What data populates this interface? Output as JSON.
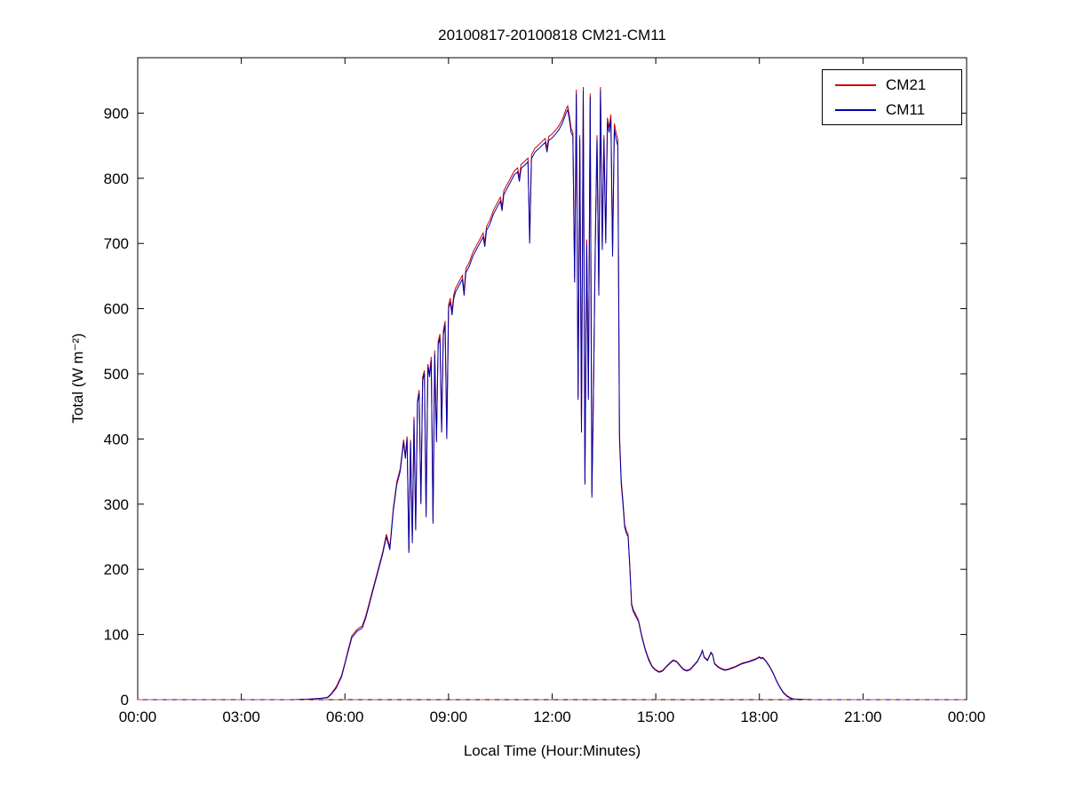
{
  "chart_data": {
    "type": "line",
    "title": "20100817-20100818 CM21-CM11",
    "xlabel": "Local Time (Hour:Minutes)",
    "ylabel": "Total (W m⁻²)",
    "xlim": [
      0,
      24
    ],
    "ylim": [
      0,
      985
    ],
    "grid": false,
    "xticks": [
      0,
      3,
      6,
      9,
      12,
      15,
      18,
      21,
      24
    ],
    "xtick_labels": [
      "00:00",
      "03:00",
      "06:00",
      "09:00",
      "12:00",
      "15:00",
      "18:00",
      "21:00",
      "00:00"
    ],
    "yticks": [
      0,
      100,
      200,
      300,
      400,
      500,
      600,
      700,
      800,
      900
    ],
    "legend": {
      "position": "top-right",
      "entries": [
        {
          "label": "CM21",
          "color": "#cc0000"
        },
        {
          "label": "CM11",
          "color": "#0000aa"
        }
      ]
    },
    "zero_line": {
      "y": 0,
      "style": "dashed",
      "color": "#dd4444"
    },
    "series": [
      {
        "name": "CM21",
        "color": "#cc0000",
        "col": 1
      },
      {
        "name": "CM11",
        "color": "#0000aa",
        "col": 2
      }
    ],
    "points": [
      [
        0,
        0,
        0
      ],
      [
        0.5,
        0,
        0
      ],
      [
        1,
        0,
        0
      ],
      [
        1.5,
        0,
        0
      ],
      [
        2,
        0,
        0
      ],
      [
        2.5,
        0,
        0
      ],
      [
        3,
        0,
        0
      ],
      [
        3.5,
        0,
        0
      ],
      [
        4,
        0,
        0
      ],
      [
        4.5,
        0,
        0
      ],
      [
        5,
        1,
        1
      ],
      [
        5.3,
        2,
        2
      ],
      [
        5.5,
        4,
        3
      ],
      [
        5.6,
        9,
        8
      ],
      [
        5.75,
        20,
        18
      ],
      [
        5.9,
        37,
        35
      ],
      [
        6.0,
        57,
        55
      ],
      [
        6.1,
        78,
        75
      ],
      [
        6.2,
        98,
        95
      ],
      [
        6.35,
        108,
        105
      ],
      [
        6.5,
        113,
        110
      ],
      [
        6.6,
        128,
        125
      ],
      [
        6.7,
        148,
        145
      ],
      [
        6.8,
        168,
        165
      ],
      [
        6.95,
        198,
        195
      ],
      [
        7.1,
        228,
        225
      ],
      [
        7.2,
        254,
        250
      ],
      [
        7.3,
        234,
        230
      ],
      [
        7.4,
        294,
        290
      ],
      [
        7.5,
        334,
        330
      ],
      [
        7.6,
        354,
        350
      ],
      [
        7.7,
        399,
        395
      ],
      [
        7.75,
        374,
        370
      ],
      [
        7.8,
        404,
        400
      ],
      [
        7.85,
        229,
        225
      ],
      [
        7.9,
        399,
        395
      ],
      [
        7.95,
        244,
        240
      ],
      [
        8.0,
        434,
        430
      ],
      [
        8.05,
        264,
        260
      ],
      [
        8.1,
        459,
        455
      ],
      [
        8.15,
        475,
        470
      ],
      [
        8.2,
        304,
        300
      ],
      [
        8.25,
        495,
        490
      ],
      [
        8.3,
        505,
        500
      ],
      [
        8.35,
        284,
        280
      ],
      [
        8.4,
        515,
        510
      ],
      [
        8.45,
        500,
        495
      ],
      [
        8.5,
        526,
        520
      ],
      [
        8.55,
        274,
        270
      ],
      [
        8.6,
        536,
        530
      ],
      [
        8.65,
        399,
        395
      ],
      [
        8.7,
        550,
        545
      ],
      [
        8.75,
        561,
        555
      ],
      [
        8.8,
        415,
        410
      ],
      [
        8.85,
        566,
        560
      ],
      [
        8.9,
        581,
        575
      ],
      [
        8.95,
        405,
        400
      ],
      [
        9.0,
        606,
        600
      ],
      [
        9.05,
        616,
        610
      ],
      [
        9.1,
        596,
        590
      ],
      [
        9.15,
        621,
        615
      ],
      [
        9.2,
        631,
        625
      ],
      [
        9.3,
        641,
        635
      ],
      [
        9.4,
        651,
        645
      ],
      [
        9.45,
        626,
        620
      ],
      [
        9.5,
        661,
        655
      ],
      [
        9.6,
        671,
        665
      ],
      [
        9.7,
        686,
        680
      ],
      [
        9.8,
        696,
        690
      ],
      [
        9.9,
        706,
        700
      ],
      [
        10.0,
        716,
        710
      ],
      [
        10.05,
        701,
        695
      ],
      [
        10.1,
        726,
        720
      ],
      [
        10.2,
        736,
        730
      ],
      [
        10.3,
        751,
        745
      ],
      [
        10.4,
        761,
        755
      ],
      [
        10.5,
        771,
        765
      ],
      [
        10.55,
        756,
        750
      ],
      [
        10.6,
        781,
        775
      ],
      [
        10.7,
        791,
        785
      ],
      [
        10.8,
        801,
        795
      ],
      [
        10.9,
        811,
        805
      ],
      [
        11.0,
        816,
        810
      ],
      [
        11.05,
        801,
        795
      ],
      [
        11.1,
        821,
        815
      ],
      [
        11.2,
        826,
        820
      ],
      [
        11.3,
        831,
        825
      ],
      [
        11.35,
        706,
        700
      ],
      [
        11.4,
        836,
        830
      ],
      [
        11.5,
        846,
        840
      ],
      [
        11.6,
        851,
        845
      ],
      [
        11.7,
        856,
        850
      ],
      [
        11.8,
        861,
        855
      ],
      [
        11.85,
        846,
        840
      ],
      [
        11.9,
        864,
        858
      ],
      [
        12.0,
        868,
        862
      ],
      [
        12.1,
        874,
        868
      ],
      [
        12.2,
        881,
        875
      ],
      [
        12.3,
        891,
        885
      ],
      [
        12.4,
        906,
        900
      ],
      [
        12.45,
        911,
        905
      ],
      [
        12.5,
        896,
        890
      ],
      [
        12.55,
        876,
        870
      ],
      [
        12.6,
        871,
        865
      ],
      [
        12.65,
        646,
        640
      ],
      [
        12.7,
        936,
        930
      ],
      [
        12.75,
        465,
        460
      ],
      [
        12.8,
        866,
        860
      ],
      [
        12.85,
        415,
        410
      ],
      [
        12.9,
        940,
        935
      ],
      [
        12.95,
        335,
        330
      ],
      [
        13.0,
        706,
        700
      ],
      [
        13.05,
        465,
        460
      ],
      [
        13.1,
        930,
        925
      ],
      [
        13.15,
        315,
        310
      ],
      [
        13.2,
        485,
        480
      ],
      [
        13.25,
        706,
        700
      ],
      [
        13.3,
        866,
        860
      ],
      [
        13.35,
        626,
        620
      ],
      [
        13.4,
        940,
        935
      ],
      [
        13.45,
        696,
        690
      ],
      [
        13.5,
        866,
        860
      ],
      [
        13.55,
        706,
        700
      ],
      [
        13.6,
        893,
        885
      ],
      [
        13.65,
        878,
        870
      ],
      [
        13.7,
        898,
        890
      ],
      [
        13.75,
        688,
        680
      ],
      [
        13.8,
        884,
        875
      ],
      [
        13.85,
        870,
        860
      ],
      [
        13.9,
        860,
        850
      ],
      [
        13.95,
        408,
        400
      ],
      [
        14.0,
        336,
        330
      ],
      [
        14.05,
        305,
        300
      ],
      [
        14.1,
        269,
        265
      ],
      [
        14.15,
        259,
        255
      ],
      [
        14.2,
        254,
        250
      ],
      [
        14.25,
        203,
        200
      ],
      [
        14.3,
        148,
        145
      ],
      [
        14.35,
        138,
        135
      ],
      [
        14.4,
        133,
        130
      ],
      [
        14.5,
        122,
        120
      ],
      [
        14.6,
        97,
        95
      ],
      [
        14.7,
        77,
        75
      ],
      [
        14.8,
        62,
        60
      ],
      [
        14.9,
        51,
        50
      ],
      [
        15.0,
        46,
        45
      ],
      [
        15.1,
        43,
        42
      ],
      [
        15.2,
        45,
        44
      ],
      [
        15.3,
        51,
        50
      ],
      [
        15.4,
        56,
        55
      ],
      [
        15.5,
        61,
        60
      ],
      [
        15.6,
        59,
        58
      ],
      [
        15.7,
        53,
        52
      ],
      [
        15.8,
        47,
        46
      ],
      [
        15.9,
        45,
        44
      ],
      [
        16.0,
        47,
        46
      ],
      [
        16.1,
        53,
        52
      ],
      [
        16.2,
        59,
        58
      ],
      [
        16.3,
        69,
        68
      ],
      [
        16.35,
        76,
        75
      ],
      [
        16.4,
        66,
        65
      ],
      [
        16.5,
        61,
        60
      ],
      [
        16.6,
        73,
        72
      ],
      [
        16.65,
        69,
        68
      ],
      [
        16.7,
        56,
        55
      ],
      [
        16.8,
        51,
        50
      ],
      [
        16.9,
        48,
        47
      ],
      [
        17.0,
        46,
        45
      ],
      [
        17.1,
        47,
        46
      ],
      [
        17.2,
        49,
        48
      ],
      [
        17.3,
        51,
        50
      ],
      [
        17.5,
        56,
        55
      ],
      [
        17.7,
        59,
        58
      ],
      [
        17.8,
        61,
        60
      ],
      [
        17.9,
        63,
        62
      ],
      [
        18.0,
        66,
        65
      ],
      [
        18.05,
        64,
        63
      ],
      [
        18.1,
        65,
        64
      ],
      [
        18.2,
        59,
        58
      ],
      [
        18.3,
        51,
        50
      ],
      [
        18.4,
        41,
        40
      ],
      [
        18.5,
        29,
        28
      ],
      [
        18.6,
        19,
        18
      ],
      [
        18.7,
        11,
        10
      ],
      [
        18.8,
        6,
        5
      ],
      [
        18.9,
        3,
        2
      ],
      [
        19.0,
        1,
        1
      ],
      [
        19.5,
        0,
        0
      ],
      [
        20,
        0,
        0
      ],
      [
        20.5,
        0,
        0
      ],
      [
        21,
        0,
        0
      ],
      [
        21.5,
        0,
        0
      ],
      [
        22,
        0,
        0
      ],
      [
        22.5,
        0,
        0
      ],
      [
        23,
        0,
        0
      ],
      [
        23.5,
        0,
        0
      ],
      [
        24,
        0,
        0
      ]
    ]
  }
}
